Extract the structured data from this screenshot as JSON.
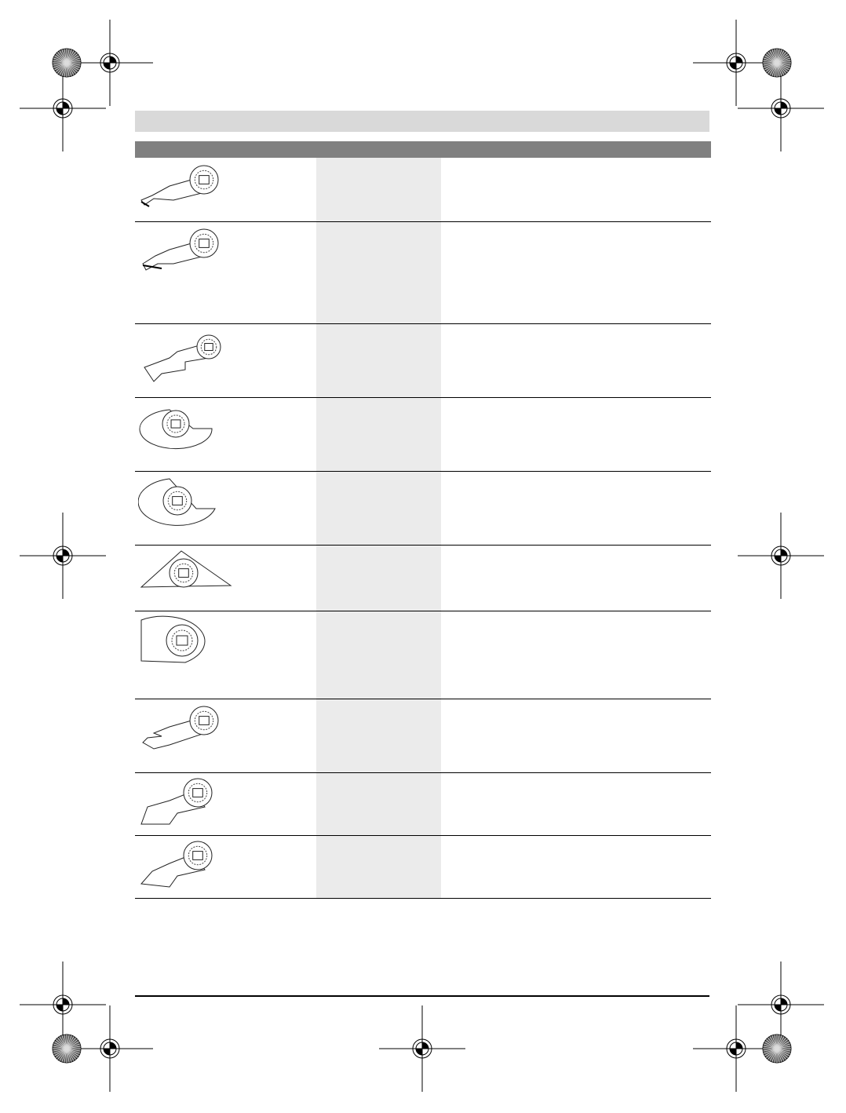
{
  "header": {
    "bar_color": "#d9d9d9",
    "table_header_color": "#808080",
    "shaded_column_color": "#ebebeb"
  },
  "rows": [
    {
      "blade_icon": "plunge-cut-blade-narrow-icon"
    },
    {
      "blade_icon": "plunge-cut-blade-wide-icon"
    },
    {
      "blade_icon": "plunge-cut-blade-long-icon"
    },
    {
      "blade_icon": "segment-saw-blade-small-icon"
    },
    {
      "blade_icon": "segment-saw-blade-large-icon"
    },
    {
      "blade_icon": "delta-sanding-plate-icon"
    },
    {
      "blade_icon": "grout-rasp-plate-icon"
    },
    {
      "blade_icon": "hook-cutter-blade-icon"
    },
    {
      "blade_icon": "rigid-scraper-icon"
    },
    {
      "blade_icon": "flexible-scraper-icon"
    }
  ]
}
